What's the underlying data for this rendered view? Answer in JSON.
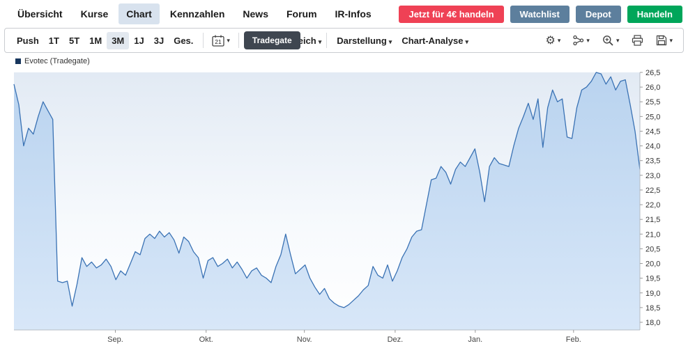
{
  "nav": {
    "items": [
      {
        "label": "Übersicht",
        "active": false
      },
      {
        "label": "Kurse",
        "active": false
      },
      {
        "label": "Chart",
        "active": true
      },
      {
        "label": "Kennzahlen",
        "active": false
      },
      {
        "label": "News",
        "active": false
      },
      {
        "label": "Forum",
        "active": false
      },
      {
        "label": "IR-Infos",
        "active": false
      }
    ],
    "actions": {
      "trade_promo": "Jetzt für 4€ handeln",
      "watchlist": "Watchlist",
      "depot": "Depot",
      "handeln": "Handeln"
    }
  },
  "toolbar": {
    "push": "Push",
    "ranges": [
      "1T",
      "5T",
      "1M",
      "3M",
      "1J",
      "3J",
      "Ges."
    ],
    "active_range": "3M",
    "calendar_day": "21",
    "exchange": "Tradegate",
    "vergleich": "Vergleich",
    "darstellung": "Darstellung",
    "chart_analyse": "Chart-Analyse"
  },
  "chart": {
    "legend": "Evotec (Tradegate)"
  },
  "colors": {
    "promo_button": "#ef4155",
    "portfolio_buttons": "#5d7f9d",
    "trade_button": "#00a65a",
    "active_tab_bg": "#d8e2ee",
    "line": "#3a72b4",
    "area_fill": "#c7dbf3",
    "legend_swatch": "#17365d"
  },
  "chart_data": {
    "type": "area",
    "series_name": "Evotec (Tradegate)",
    "ylim": [
      18.0,
      26.5
    ],
    "yticks": [
      "26,5",
      "26,0",
      "25,5",
      "25,0",
      "24,5",
      "24,0",
      "23,5",
      "23,0",
      "22,5",
      "22,0",
      "21,5",
      "21,0",
      "20,5",
      "20,0",
      "19,5",
      "19,0",
      "18,5",
      "18,0"
    ],
    "xticks": [
      {
        "label": "Sep.",
        "f": 0.162
      },
      {
        "label": "Okt.",
        "f": 0.307
      },
      {
        "label": "Nov.",
        "f": 0.464
      },
      {
        "label": "Dez.",
        "f": 0.609
      },
      {
        "label": "Jan.",
        "f": 0.737
      },
      {
        "label": "Feb.",
        "f": 0.894
      }
    ],
    "values": [
      26.1,
      25.4,
      24.0,
      24.6,
      24.4,
      25.0,
      25.5,
      25.2,
      24.9,
      19.4,
      19.35,
      19.4,
      18.55,
      19.3,
      20.2,
      19.9,
      20.05,
      19.85,
      19.95,
      20.15,
      19.9,
      19.45,
      19.75,
      19.6,
      20.0,
      20.4,
      20.3,
      20.85,
      21.0,
      20.85,
      21.1,
      20.9,
      21.05,
      20.8,
      20.35,
      20.9,
      20.75,
      20.4,
      20.2,
      19.5,
      20.1,
      20.2,
      19.9,
      20.0,
      20.15,
      19.85,
      20.05,
      19.8,
      19.5,
      19.75,
      19.85,
      19.6,
      19.5,
      19.35,
      19.9,
      20.3,
      21.0,
      20.3,
      19.65,
      19.8,
      19.95,
      19.5,
      19.2,
      18.95,
      19.15,
      18.8,
      18.65,
      18.55,
      18.5,
      18.6,
      18.75,
      18.9,
      19.1,
      19.25,
      19.9,
      19.6,
      19.5,
      19.95,
      19.4,
      19.75,
      20.2,
      20.5,
      20.9,
      21.1,
      21.15,
      22.0,
      22.85,
      22.9,
      23.3,
      23.1,
      22.7,
      23.2,
      23.45,
      23.3,
      23.6,
      23.9,
      23.1,
      22.1,
      23.3,
      23.6,
      23.4,
      23.35,
      23.3,
      24.0,
      24.6,
      25.0,
      25.45,
      24.9,
      25.6,
      23.95,
      25.3,
      25.9,
      25.5,
      25.6,
      24.3,
      24.25,
      25.3,
      25.9,
      26.0,
      26.2,
      26.5,
      26.45,
      26.1,
      26.35,
      25.9,
      26.2,
      26.25,
      25.4,
      24.5,
      23.2
    ],
    "line_color": "#3a72b4",
    "area_color": "#c7dbf3",
    "legend_position": "top-left",
    "y_axis_side": "right",
    "grid": false
  }
}
